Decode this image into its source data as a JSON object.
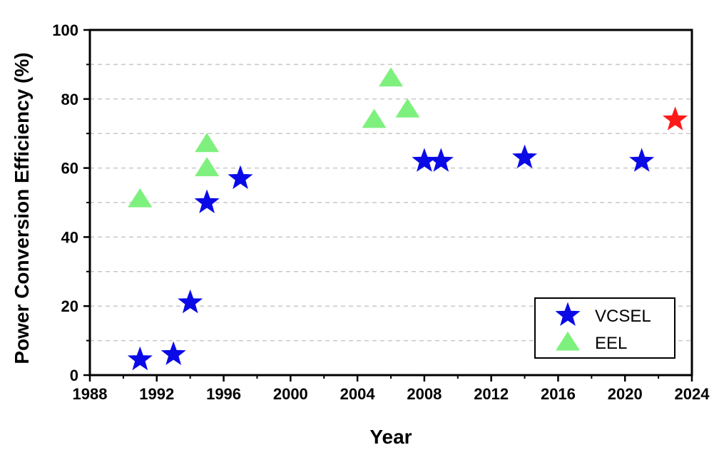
{
  "chart_data": {
    "type": "scatter",
    "xlabel": "Year",
    "ylabel": "Power Conversion Efficiency (%)",
    "xlim": [
      1988,
      2024
    ],
    "ylim": [
      0,
      100
    ],
    "x_ticks": [
      1988,
      1992,
      1996,
      2000,
      2004,
      2008,
      2012,
      2016,
      2020,
      2024
    ],
    "y_ticks": [
      0,
      20,
      40,
      60,
      80,
      100
    ],
    "grid": "horizontal dashed at 10% intervals",
    "legend": "bottom-right",
    "series": [
      {
        "name": "VCSEL",
        "marker": "star",
        "color": "#0a0ae6",
        "points": [
          [
            1991,
            4.5
          ],
          [
            1993,
            6
          ],
          [
            1994,
            21
          ],
          [
            1995,
            50
          ],
          [
            1997,
            57
          ],
          [
            2008,
            62
          ],
          [
            2009,
            62
          ],
          [
            2014,
            63
          ],
          [
            2021,
            62
          ]
        ]
      },
      {
        "name": "EEL",
        "marker": "triangle",
        "color": "#7ef07e",
        "points": [
          [
            1991,
            51
          ],
          [
            1995,
            67
          ],
          [
            1995,
            60
          ],
          [
            2005,
            74
          ],
          [
            2006,
            86
          ],
          [
            2007,
            77
          ]
        ]
      }
    ],
    "highlight_points": [
      {
        "marker": "star",
        "color": "#ff1a1a",
        "x": 2023,
        "y": 74
      }
    ]
  }
}
